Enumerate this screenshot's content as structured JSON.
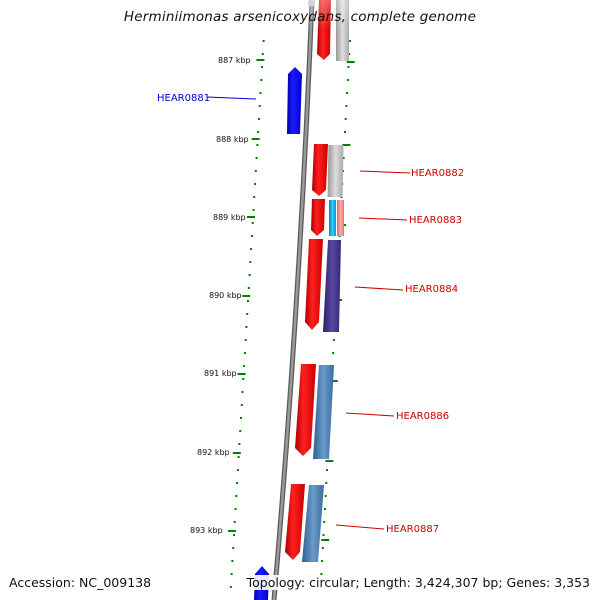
{
  "title": "Herminiimonas arsenicoxydans, complete genome",
  "footer": {
    "accession": "Accession: NC_009138",
    "summary": "Topology: circular; Length: 3,424,307 bp; Genes: 3,353"
  },
  "ticks": [
    {
      "label": "887 kbp"
    },
    {
      "label": "888 kbp"
    },
    {
      "label": "889 kbp"
    },
    {
      "label": "890 kbp"
    },
    {
      "label": "891 kbp"
    },
    {
      "label": "892 kbp"
    },
    {
      "label": "893 kbp"
    }
  ],
  "genes": [
    {
      "label": "HEAR0881",
      "strand": "minus",
      "color": "#0000dd"
    },
    {
      "label": "HEAR0882",
      "strand": "plus",
      "color": "#dd0000"
    },
    {
      "label": "HEAR0883",
      "strand": "plus",
      "color": "#dd0000"
    },
    {
      "label": "HEAR0884",
      "strand": "plus",
      "color": "#dd0000"
    },
    {
      "label": "HEAR0886",
      "strand": "plus",
      "color": "#dd0000"
    },
    {
      "label": "HEAR0887",
      "strand": "plus",
      "color": "#dd0000"
    }
  ],
  "colors": {
    "backbone": "#888888",
    "tick": "#008000",
    "plus_gene": "#ff0000",
    "minus_gene": "#0000ff",
    "cog_grey": "#bbbbbb",
    "cog_cyan": "#00aadd",
    "cog_pink": "#ee8888",
    "cog_indigo": "#443388",
    "cog_steel": "#4477aa"
  }
}
